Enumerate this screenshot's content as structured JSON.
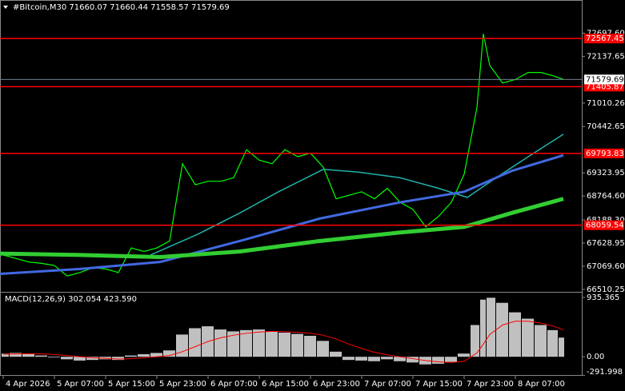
{
  "chart_data": [
    {
      "type": "line",
      "title": "#Bitcoin,M30  71660.07 71660.44 71558.57 71579.69",
      "xlim": [
        0,
        182
      ],
      "ylim": [
        66470,
        73150
      ],
      "yticks": [
        {
          "value": 72697.6,
          "label": "72697.60"
        },
        72137.65,
        71010.26,
        70442.65,
        69323.95,
        {
          "value": 68764.6,
          "label": "68764.60"
        },
        {
          "value": 68188.3,
          "label": "68188.30"
        },
        67628.95,
        {
          "value": 67069.6,
          "label": "67069.60"
        },
        66510.25
      ],
      "levels": [
        72567.45,
        71405.87,
        69793.83,
        68059.54
      ],
      "level_color": "#ff0000",
      "current_price": 71579.69,
      "series": [
        {
          "color": "#00ff00",
          "width": 1.2,
          "x": [
            1,
            5,
            9,
            13,
            17,
            21,
            25,
            29,
            33,
            37,
            41,
            45,
            49,
            53,
            57,
            61,
            65,
            69,
            73,
            77,
            81,
            85,
            89,
            93,
            97,
            101,
            105,
            109,
            113,
            117,
            121,
            125,
            129,
            133,
            137,
            141,
            145,
            149,
            151,
            153,
            157,
            161,
            165,
            169,
            173,
            176
          ],
          "values": [
            67341,
            67256,
            67172,
            67138,
            67087,
            66833,
            66918,
            67036,
            67003,
            66918,
            67511,
            67426,
            67511,
            67680,
            69545,
            69036,
            69121,
            69121,
            69206,
            69884,
            69630,
            69545,
            69884,
            69714,
            69799,
            69460,
            68697,
            68782,
            68867,
            68697,
            68951,
            68612,
            68443,
            68019,
            68273,
            68612,
            69291,
            70901,
            72680,
            71918,
            71494,
            71579,
            71748,
            71748,
            71663,
            71580
          ]
        },
        {
          "color": "#20b2aa",
          "width": 1.5,
          "x": [
            47,
            62,
            75,
            87,
            101,
            112,
            125,
            137,
            146,
            155,
            165,
            176
          ],
          "values": [
            67341,
            67850,
            68358,
            68867,
            69409,
            69341,
            69206,
            68951,
            68731,
            69206,
            69714,
            70256
          ]
        },
        {
          "color": "#4169e1",
          "width": 3,
          "x": [
            0,
            25,
            50,
            75,
            100,
            125,
            145,
            160,
            176
          ],
          "values": [
            66884,
            67003,
            67172,
            67680,
            68222,
            68612,
            68867,
            69375,
            69748
          ]
        },
        {
          "color": "#32cd32",
          "width": 5,
          "x": [
            0,
            25,
            50,
            75,
            100,
            125,
            145,
            160,
            176
          ],
          "values": [
            67375,
            67341,
            67290,
            67426,
            67680,
            67884,
            68019,
            68358,
            68697
          ]
        }
      ]
    },
    {
      "type": "macd",
      "title": "MACD(12,26,9) 302.054 423.590",
      "xlim": [
        0,
        182
      ],
      "ylim": [
        -300,
        1010
      ],
      "yticks": [
        935.365,
        {
          "value": 0,
          "label": "0.00"
        },
        -291.998
      ],
      "xticks": [
        {
          "value": 1,
          "label": "4 Apr 2026"
        },
        {
          "value": 17,
          "label": "5 Apr 07:00"
        },
        {
          "value": 33,
          "label": "5 Apr 15:00"
        },
        {
          "value": 49,
          "label": "5 Apr 23:00"
        },
        {
          "value": 65,
          "label": "6 Apr 07:00"
        },
        {
          "value": 81,
          "label": "6 Apr 15:00"
        },
        {
          "value": 97,
          "label": "6 Apr 23:00"
        },
        {
          "value": 113,
          "label": "7 Apr 07:00"
        },
        {
          "value": 129,
          "label": "7 Apr 15:00"
        },
        {
          "value": 145,
          "label": "7 Apr 23:00"
        },
        {
          "value": 161,
          "label": "8 Apr 07:00"
        }
      ],
      "x": [
        1,
        5,
        9,
        13,
        17,
        21,
        25,
        29,
        33,
        37,
        41,
        45,
        49,
        53,
        57,
        61,
        65,
        69,
        73,
        77,
        81,
        85,
        89,
        93,
        97,
        101,
        105,
        109,
        113,
        117,
        121,
        125,
        129,
        133,
        137,
        141,
        145,
        149,
        151,
        153,
        157,
        161,
        165,
        169,
        173,
        176
      ],
      "series": [
        {
          "style": "histogram",
          "color": "#c0c0c0",
          "values": [
            50,
            60,
            40,
            20,
            -10,
            -40,
            -60,
            -50,
            -40,
            -50,
            20,
            40,
            60,
            100,
            350,
            450,
            480,
            430,
            400,
            420,
            430,
            400,
            380,
            360,
            330,
            250,
            80,
            -50,
            -60,
            -70,
            -40,
            -70,
            -90,
            -120,
            -110,
            -80,
            50,
            500,
            900,
            930,
            850,
            700,
            600,
            500,
            420,
            302.054
          ]
        },
        {
          "style": "line",
          "color": "#ff0000",
          "values": [
            40,
            45,
            48,
            45,
            35,
            20,
            0,
            -15,
            -25,
            -35,
            -30,
            -15,
            0,
            20,
            80,
            160,
            240,
            300,
            340,
            370,
            390,
            400,
            395,
            385,
            370,
            340,
            280,
            200,
            130,
            70,
            30,
            0,
            -30,
            -60,
            -80,
            -90,
            -70,
            60,
            200,
            350,
            500,
            560,
            560,
            530,
            480,
            423.59
          ]
        }
      ]
    }
  ]
}
